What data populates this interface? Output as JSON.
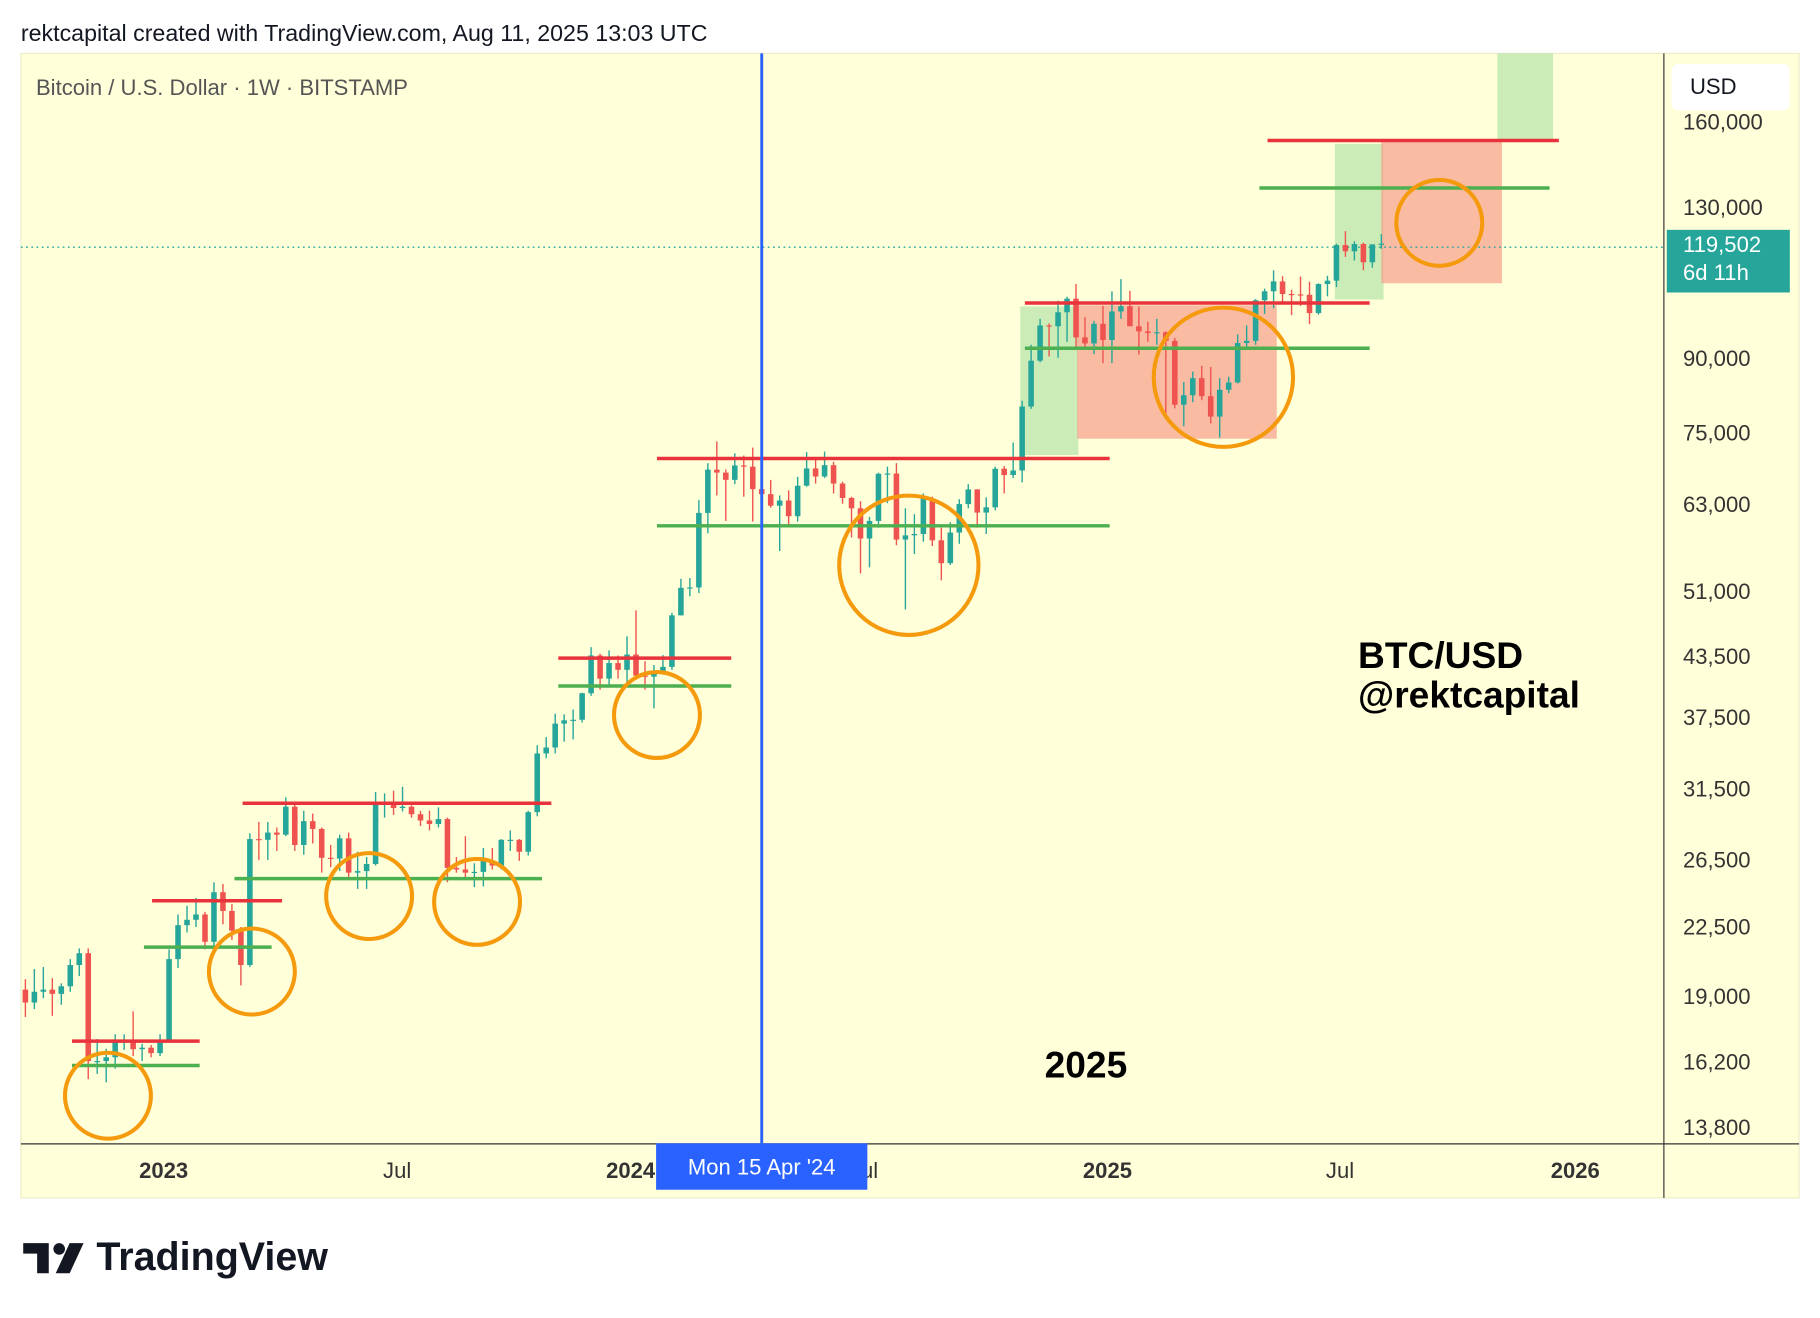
{
  "header": "rektcapital created with TradingView.com, Aug 11, 2025 13:03 UTC",
  "chart_data": {
    "type": "candlestick",
    "title": "Bitcoin / U.S. Dollar · 1W · BITSTAMP",
    "currency": "USD",
    "log_scale": true,
    "up_color": "#26a69a",
    "down_color": "#ef5350",
    "ylim": [
      13340,
      190000
    ],
    "yticks": [
      {
        "value": 160000,
        "label": "160,000"
      },
      {
        "value": 130000,
        "label": "130,000"
      },
      {
        "value": 90000,
        "label": "90,000"
      },
      {
        "value": 75000,
        "label": "75,000"
      },
      {
        "value": 63000,
        "label": "63,000"
      },
      {
        "value": 51000,
        "label": "51,000"
      },
      {
        "value": 43500,
        "label": "43,500"
      },
      {
        "value": 37500,
        "label": "37,500"
      },
      {
        "value": 31500,
        "label": "31,500"
      },
      {
        "value": 26500,
        "label": "26,500"
      },
      {
        "value": 22500,
        "label": "22,500"
      },
      {
        "value": 19000,
        "label": "19,000"
      },
      {
        "value": 16200,
        "label": "16,200"
      },
      {
        "value": 13800,
        "label": "13,800"
      }
    ],
    "xlim": [
      -0.5,
      182.4
    ],
    "xticks": [
      {
        "value": 15.4,
        "label": "2023"
      },
      {
        "value": 41.4,
        "label": "Jul"
      },
      {
        "value": 67.4,
        "label": "2024"
      },
      {
        "value": 93.4,
        "label": "Jul"
      },
      {
        "value": 120.5,
        "label": "2025"
      },
      {
        "value": 146.4,
        "label": "Jul"
      },
      {
        "value": 172.6,
        "label": "2026"
      }
    ],
    "crosshair": {
      "value": 82,
      "label": "Mon 15 Apr '24"
    },
    "last_label": "119,502",
    "countdown": "6d 11h",
    "annotations": [
      "BTC/USD",
      "@rektcapital",
      "2025"
    ],
    "ohlc": [
      [
        19400,
        19900,
        18150,
        18800
      ],
      [
        18800,
        20400,
        18500,
        19300
      ],
      [
        19300,
        20500,
        19000,
        19400
      ],
      [
        19400,
        19950,
        18200,
        19200
      ],
      [
        19200,
        19700,
        18700,
        19560
      ],
      [
        19560,
        20900,
        19300,
        20600
      ],
      [
        20600,
        21450,
        20050,
        21200
      ],
      [
        21200,
        21450,
        15600,
        16300
      ],
      [
        16300,
        17200,
        15800,
        16300
      ],
      [
        16300,
        16800,
        15480,
        16450
      ],
      [
        16450,
        17400,
        16000,
        17100
      ],
      [
        17100,
        17400,
        16750,
        17100
      ],
      [
        17100,
        18400,
        16500,
        16780
      ],
      [
        16780,
        17000,
        16300,
        16840
      ],
      [
        16840,
        16950,
        16450,
        16620
      ],
      [
        16620,
        17400,
        16500,
        17150
      ],
      [
        17150,
        21400,
        17100,
        20900
      ],
      [
        20900,
        23300,
        20450,
        22700
      ],
      [
        22700,
        23800,
        22300,
        23000
      ],
      [
        23000,
        24250,
        22600,
        23300
      ],
      [
        23300,
        23450,
        21400,
        21800
      ],
      [
        21800,
        25200,
        21500,
        24600
      ],
      [
        24600,
        25100,
        22750,
        23500
      ],
      [
        23500,
        23900,
        21900,
        22400
      ],
      [
        22400,
        22600,
        19600,
        20600
      ],
      [
        20600,
        28400,
        20500,
        28000
      ],
      [
        28000,
        29200,
        26600,
        27950
      ],
      [
        27950,
        29200,
        26600,
        28450
      ],
      [
        28450,
        28800,
        27200,
        28300
      ],
      [
        28300,
        31000,
        28200,
        30300
      ],
      [
        30300,
        30500,
        27200,
        27600
      ],
      [
        27600,
        30000,
        26950,
        29250
      ],
      [
        29250,
        29800,
        27700,
        28700
      ],
      [
        28700,
        28800,
        25800,
        26750
      ],
      [
        26750,
        27600,
        26150,
        26700
      ],
      [
        26700,
        28300,
        25900,
        28050
      ],
      [
        28050,
        28450,
        25400,
        25800
      ],
      [
        25800,
        27150,
        24800,
        25900
      ],
      [
        25900,
        26800,
        24800,
        26350
      ],
      [
        26350,
        31400,
        26250,
        30550
      ],
      [
        30550,
        31300,
        29500,
        30600
      ],
      [
        30600,
        31500,
        29700,
        30200
      ],
      [
        30200,
        31800,
        29950,
        30300
      ],
      [
        30300,
        30400,
        29500,
        29750
      ],
      [
        29750,
        30000,
        28900,
        29300
      ],
      [
        29300,
        30000,
        28600,
        29050
      ],
      [
        29050,
        30250,
        28800,
        29400
      ],
      [
        29400,
        29500,
        25200,
        26100
      ],
      [
        26100,
        26800,
        25800,
        26000
      ],
      [
        26000,
        28200,
        25400,
        25800
      ],
      [
        25800,
        26400,
        24900,
        25850
      ],
      [
        25850,
        27400,
        24950,
        26550
      ],
      [
        26550,
        27400,
        26000,
        26250
      ],
      [
        26250,
        28000,
        26000,
        27950
      ],
      [
        27950,
        28600,
        27200,
        27950
      ],
      [
        27950,
        28000,
        26550,
        27150
      ],
      [
        27150,
        30000,
        26900,
        29900
      ],
      [
        29900,
        35200,
        29600,
        34500
      ],
      [
        34500,
        35900,
        34100,
        35000
      ],
      [
        35000,
        38000,
        34500,
        37100
      ],
      [
        37100,
        37950,
        35500,
        37400
      ],
      [
        37400,
        38400,
        35700,
        37450
      ],
      [
        37450,
        40000,
        37200,
        39950
      ],
      [
        39950,
        44700,
        39700,
        43800
      ],
      [
        43800,
        44000,
        40300,
        41400
      ],
      [
        41400,
        44350,
        40600,
        43000
      ],
      [
        43000,
        43800,
        41400,
        42300
      ],
      [
        42300,
        45900,
        40800,
        43900
      ],
      [
        43900,
        48900,
        41500,
        41700
      ],
      [
        41700,
        43200,
        40300,
        41600
      ],
      [
        41600,
        42800,
        38500,
        42100
      ],
      [
        42100,
        43850,
        41800,
        42600
      ],
      [
        42600,
        48600,
        42300,
        48300
      ],
      [
        48300,
        52800,
        48300,
        51650
      ],
      [
        51650,
        52900,
        50600,
        51700
      ],
      [
        51700,
        64000,
        51000,
        62000
      ],
      [
        62000,
        70000,
        59000,
        68900
      ],
      [
        68900,
        73800,
        64700,
        68400
      ],
      [
        68400,
        68900,
        60800,
        67200
      ],
      [
        67200,
        71700,
        66500,
        69600
      ],
      [
        69600,
        71300,
        64500,
        69400
      ],
      [
        69400,
        72700,
        60700,
        65700
      ],
      [
        65700,
        66900,
        59600,
        64900
      ],
      [
        64900,
        67200,
        62800,
        63100
      ],
      [
        63100,
        64700,
        56500,
        63900
      ],
      [
        63900,
        65500,
        60200,
        61500
      ],
      [
        61500,
        67700,
        60700,
        66250
      ],
      [
        66250,
        71900,
        66100,
        69100
      ],
      [
        69100,
        70600,
        66600,
        67750
      ],
      [
        67750,
        72000,
        67500,
        69650
      ],
      [
        69650,
        70200,
        65000,
        66600
      ],
      [
        66600,
        66900,
        63400,
        64300
      ],
      [
        64300,
        64500,
        58400,
        62700
      ],
      [
        62700,
        63800,
        53500,
        58250
      ],
      [
        58250,
        61400,
        54300,
        60800
      ],
      [
        60800,
        68400,
        59800,
        68200
      ],
      [
        68200,
        69400,
        63500,
        68250
      ],
      [
        68250,
        70000,
        57300,
        58100
      ],
      [
        58100,
        62700,
        49000,
        58700
      ],
      [
        58700,
        61800,
        56100,
        58900
      ],
      [
        58900,
        65000,
        57800,
        64200
      ],
      [
        64200,
        64500,
        57200,
        58000
      ],
      [
        58000,
        59800,
        52600,
        54850
      ],
      [
        54850,
        60600,
        54600,
        59100
      ],
      [
        59100,
        64100,
        57500,
        63350
      ],
      [
        63350,
        66500,
        62700,
        65650
      ],
      [
        65650,
        65700,
        59800,
        62050
      ],
      [
        62050,
        64400,
        58900,
        62850
      ],
      [
        62850,
        69400,
        62400,
        69050
      ],
      [
        69050,
        69500,
        65000,
        68000
      ],
      [
        68000,
        73600,
        67500,
        68750
      ],
      [
        68750,
        81500,
        66800,
        80350
      ],
      [
        80350,
        93400,
        79900,
        89850
      ],
      [
        89850,
        99500,
        89500,
        97900
      ],
      [
        97900,
        98400,
        90800,
        97700
      ],
      [
        97700,
        104000,
        90500,
        101100
      ],
      [
        101100,
        105000,
        94100,
        104500
      ],
      [
        104500,
        108300,
        92200,
        95100
      ],
      [
        95100,
        99900,
        92500,
        93700
      ],
      [
        93700,
        99000,
        91300,
        98300
      ],
      [
        98300,
        102700,
        89300,
        94500
      ],
      [
        94500,
        106400,
        89300,
        101300
      ],
      [
        101300,
        109600,
        99500,
        102600
      ],
      [
        102600,
        106500,
        97800,
        97700
      ],
      [
        97700,
        102500,
        91200,
        96500
      ],
      [
        96500,
        98800,
        94100,
        96100
      ],
      [
        96100,
        99500,
        93400,
        96300
      ],
      [
        96300,
        96500,
        78200,
        94300
      ],
      [
        94300,
        95000,
        80000,
        80700
      ],
      [
        80700,
        85300,
        76600,
        82600
      ],
      [
        82600,
        87500,
        81200,
        86100
      ],
      [
        86100,
        88700,
        81600,
        82400
      ],
      [
        82400,
        88500,
        77100,
        78400
      ],
      [
        78400,
        86100,
        74500,
        83700
      ],
      [
        83700,
        86400,
        83000,
        85200
      ],
      [
        85200,
        95800,
        85000,
        93800
      ],
      [
        93800,
        97900,
        92800,
        94300
      ],
      [
        94300,
        104400,
        93400,
        104100
      ],
      [
        104100,
        107100,
        100700,
        106400
      ],
      [
        106400,
        112000,
        102100,
        109000
      ],
      [
        109000,
        110400,
        103100,
        105700
      ],
      [
        105700,
        106800,
        100400,
        105600
      ],
      [
        105600,
        110300,
        102700,
        105500
      ],
      [
        105500,
        108900,
        98200,
        100900
      ],
      [
        100900,
        108500,
        100500,
        108300
      ],
      [
        108300,
        110500,
        105100,
        109200
      ],
      [
        109200,
        119500,
        107500,
        119100
      ],
      [
        119100,
        123200,
        115700,
        117300
      ],
      [
        117300,
        120200,
        114700,
        119400
      ],
      [
        119400,
        119800,
        112000,
        114200
      ],
      [
        114200,
        119300,
        112700,
        119300
      ],
      [
        119300,
        122300,
        118000,
        119502
      ]
    ]
  },
  "footer": {
    "brand": "TradingView"
  }
}
